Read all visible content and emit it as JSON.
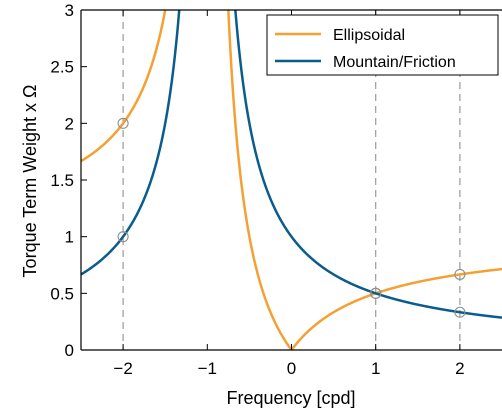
{
  "chart_data": {
    "type": "line",
    "xlabel": "Frequency [cpd]",
    "ylabel": "Torque Term Weight x Ω",
    "xlim": [
      -2.5,
      2.5
    ],
    "ylim": [
      0,
      3
    ],
    "xticks": [
      -2,
      -1,
      0,
      1,
      2
    ],
    "xtick_labels": [
      "−2",
      "−1",
      "0",
      "1",
      "2"
    ],
    "yticks": [
      0,
      0.5,
      1,
      1.5,
      2,
      2.5,
      3
    ],
    "ytick_labels": [
      "0",
      "0.5",
      "1",
      "1.5",
      "2",
      "2.5",
      "3"
    ],
    "grid": false,
    "reference_lines": [
      -2,
      1,
      2
    ],
    "legend_position": "top-right",
    "series": [
      {
        "name": "Ellipsoidal",
        "color": "#F5A033",
        "formula": "|x| / |x + 1|",
        "marker_points": [
          [
            -2,
            2
          ],
          [
            1,
            0.5
          ],
          [
            2,
            0.667
          ]
        ]
      },
      {
        "name": "Mountain/Friction",
        "color": "#0A5C8C",
        "formula": "1 / |x + 1|",
        "marker_points": [
          [
            -2,
            1
          ],
          [
            1,
            0.5
          ],
          [
            2,
            0.333
          ]
        ]
      }
    ]
  }
}
